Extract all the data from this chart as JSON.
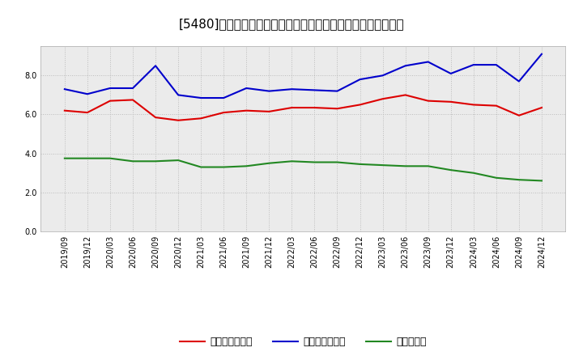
{
  "title": "[5480]　売上債権回転率、買入債務回転率、在庫回転率の推移",
  "x_labels": [
    "2019/09",
    "2019/12",
    "2020/03",
    "2020/06",
    "2020/09",
    "2020/12",
    "2021/03",
    "2021/06",
    "2021/09",
    "2021/12",
    "2022/03",
    "2022/06",
    "2022/09",
    "2022/12",
    "2023/03",
    "2023/06",
    "2023/09",
    "2023/12",
    "2024/03",
    "2024/06",
    "2024/09",
    "2024/12"
  ],
  "red_values": [
    6.2,
    6.1,
    6.7,
    6.75,
    5.85,
    5.7,
    5.8,
    6.1,
    6.2,
    6.15,
    6.35,
    6.35,
    6.3,
    6.5,
    6.8,
    7.0,
    6.7,
    6.65,
    6.5,
    6.45,
    5.95,
    6.35
  ],
  "blue_values": [
    7.3,
    7.05,
    7.35,
    7.35,
    8.5,
    7.0,
    6.85,
    6.85,
    7.35,
    7.2,
    7.3,
    7.25,
    7.2,
    7.8,
    8.0,
    8.5,
    8.7,
    8.1,
    8.55,
    8.55,
    7.7,
    9.1
  ],
  "green_values": [
    3.75,
    3.75,
    3.75,
    3.6,
    3.6,
    3.65,
    3.3,
    3.3,
    3.35,
    3.5,
    3.6,
    3.55,
    3.55,
    3.45,
    3.4,
    3.35,
    3.35,
    3.15,
    3.0,
    2.75,
    2.65,
    2.6
  ],
  "red_label": "売上債権回転率",
  "blue_label": "買入債務回転率",
  "green_label": "在庫回転率",
  "red_color": "#dd0000",
  "blue_color": "#0000cc",
  "green_color": "#228822",
  "ylim": [
    0.0,
    9.5
  ],
  "yticks": [
    0.0,
    2.0,
    4.0,
    6.0,
    8.0
  ],
  "background_color": "#ffffff",
  "plot_bg_color": "#ebebeb",
  "grid_color": "#bbbbbb",
  "title_fontsize": 11,
  "legend_fontsize": 9,
  "tick_fontsize": 7
}
